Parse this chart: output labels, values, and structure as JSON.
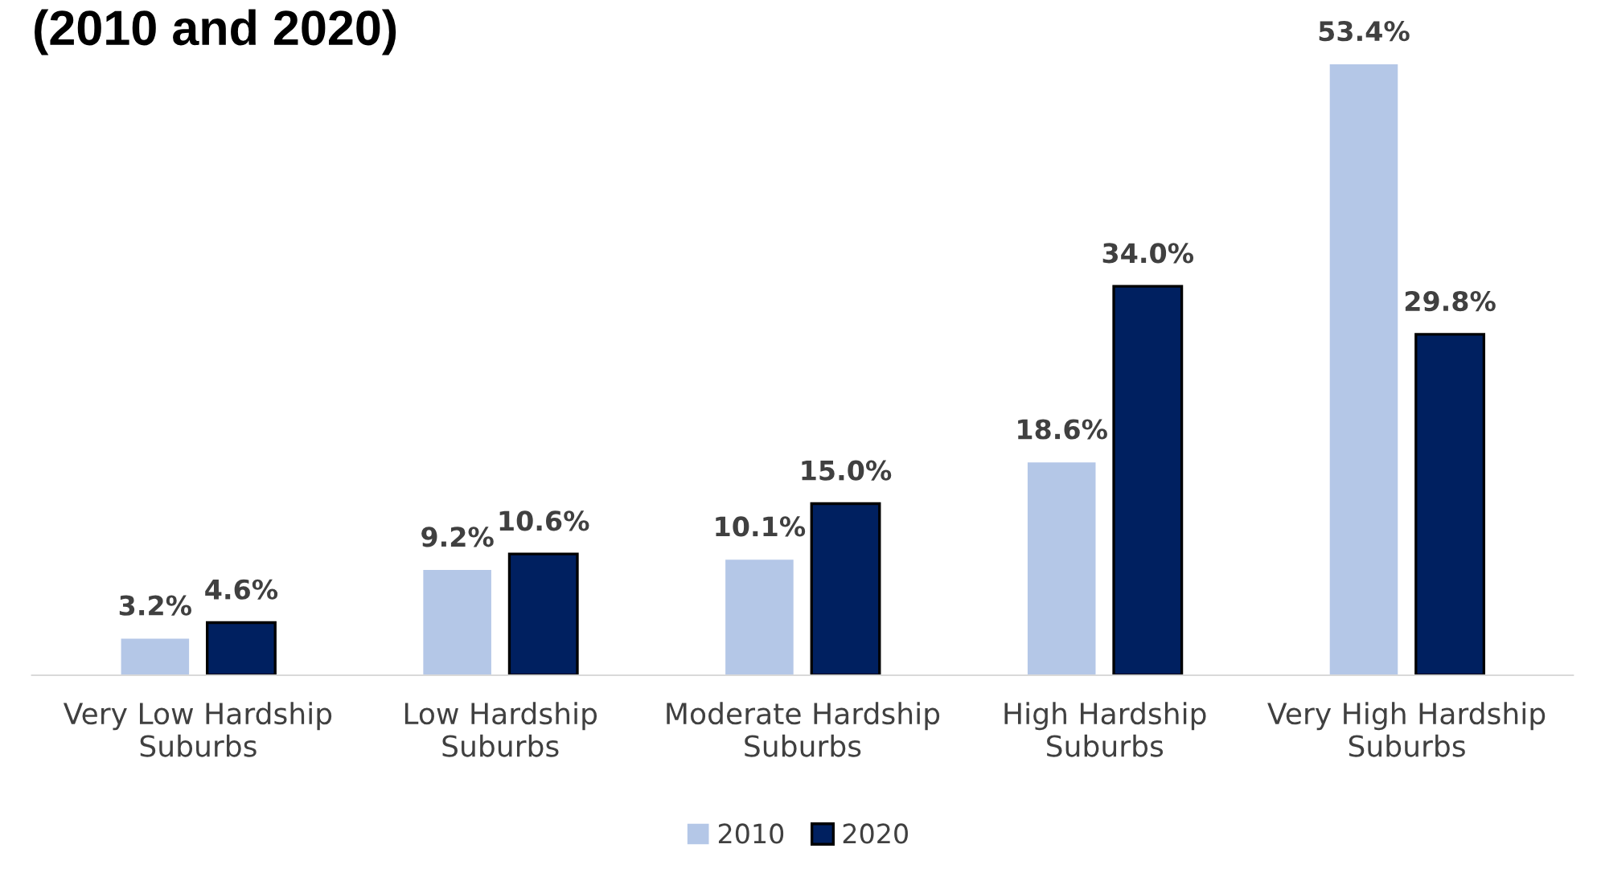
{
  "chart_data": {
    "type": "bar",
    "title": "(2010 and 2020)",
    "categories": [
      "Very Low Hardship\nSuburbs",
      "Low Hardship\nSuburbs",
      "Moderate Hardship\nSuburbs",
      "High Hardship\nSuburbs",
      "Very High Hardship\nSuburbs"
    ],
    "series": [
      {
        "name": "2010",
        "color": "#b4c7e7",
        "values": [
          3.2,
          9.2,
          10.1,
          18.6,
          53.4
        ],
        "value_labels": [
          "3.2%",
          "9.2%",
          "10.1%",
          "18.6%",
          "53.4%"
        ]
      },
      {
        "name": "2020",
        "color": "#002060",
        "values": [
          4.6,
          10.6,
          15.0,
          34.0,
          29.8
        ],
        "value_labels": [
          "4.6%",
          "10.6%",
          "15.0%",
          "34.0%",
          "29.8%"
        ]
      }
    ],
    "legend": "bottom",
    "grid": false
  }
}
